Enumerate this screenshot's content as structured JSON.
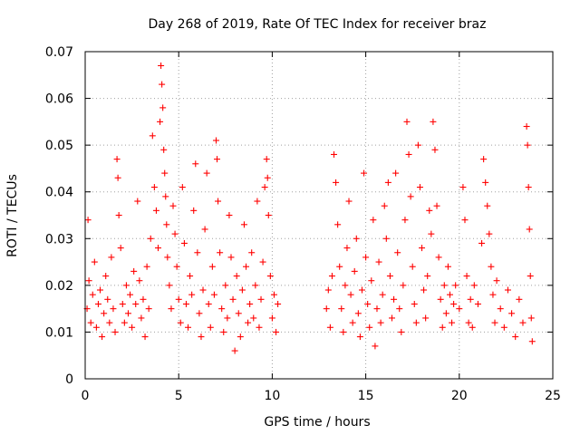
{
  "chart_data": {
    "type": "scatter",
    "title": "Day 268 of 2019, Rate Of TEC Index for receiver braz",
    "xlabel": "GPS time / hours",
    "ylabel": "ROTI / TECUs",
    "xlim": [
      0,
      25
    ],
    "ylim": [
      0,
      0.07
    ],
    "xticks": [
      0,
      5,
      10,
      15,
      20,
      25
    ],
    "xtick_labels": [
      "0",
      "5",
      "10",
      "15",
      "20",
      "25"
    ],
    "yticks": [
      0,
      0.01,
      0.02,
      0.03,
      0.04,
      0.05,
      0.06,
      0.07
    ],
    "ytick_labels": [
      "0",
      "0.01",
      "0.02",
      "0.03",
      "0.04",
      "0.05",
      "0.06",
      "0.07"
    ],
    "grid": true,
    "marker": "plus",
    "color": "#ff0000",
    "data_gap_hours": [
      10.4,
      12.8
    ],
    "points": [
      [
        0.1,
        0.015
      ],
      [
        0.15,
        0.034
      ],
      [
        0.2,
        0.021
      ],
      [
        0.3,
        0.012
      ],
      [
        0.4,
        0.018
      ],
      [
        0.5,
        0.025
      ],
      [
        0.6,
        0.011
      ],
      [
        0.7,
        0.016
      ],
      [
        0.8,
        0.019
      ],
      [
        0.9,
        0.009
      ],
      [
        1.0,
        0.014
      ],
      [
        1.1,
        0.022
      ],
      [
        1.2,
        0.017
      ],
      [
        1.3,
        0.012
      ],
      [
        1.4,
        0.026
      ],
      [
        1.5,
        0.015
      ],
      [
        1.6,
        0.01
      ],
      [
        1.7,
        0.047
      ],
      [
        1.75,
        0.043
      ],
      [
        1.8,
        0.035
      ],
      [
        1.9,
        0.028
      ],
      [
        2.0,
        0.016
      ],
      [
        2.1,
        0.012
      ],
      [
        2.2,
        0.02
      ],
      [
        2.3,
        0.014
      ],
      [
        2.4,
        0.018
      ],
      [
        2.5,
        0.011
      ],
      [
        2.6,
        0.023
      ],
      [
        2.7,
        0.016
      ],
      [
        2.8,
        0.038
      ],
      [
        2.9,
        0.021
      ],
      [
        3.0,
        0.013
      ],
      [
        3.1,
        0.017
      ],
      [
        3.2,
        0.009
      ],
      [
        3.3,
        0.024
      ],
      [
        3.4,
        0.015
      ],
      [
        3.5,
        0.03
      ],
      [
        3.6,
        0.052
      ],
      [
        3.7,
        0.041
      ],
      [
        3.8,
        0.036
      ],
      [
        3.9,
        0.028
      ],
      [
        4.0,
        0.055
      ],
      [
        4.05,
        0.067
      ],
      [
        4.1,
        0.063
      ],
      [
        4.15,
        0.058
      ],
      [
        4.2,
        0.049
      ],
      [
        4.25,
        0.044
      ],
      [
        4.3,
        0.039
      ],
      [
        4.35,
        0.033
      ],
      [
        4.4,
        0.026
      ],
      [
        4.5,
        0.02
      ],
      [
        4.6,
        0.015
      ],
      [
        4.7,
        0.037
      ],
      [
        4.8,
        0.031
      ],
      [
        4.9,
        0.024
      ],
      [
        5.0,
        0.017
      ],
      [
        5.1,
        0.012
      ],
      [
        5.2,
        0.041
      ],
      [
        5.3,
        0.029
      ],
      [
        5.4,
        0.016
      ],
      [
        5.5,
        0.011
      ],
      [
        5.6,
        0.022
      ],
      [
        5.7,
        0.018
      ],
      [
        5.8,
        0.036
      ],
      [
        5.9,
        0.046
      ],
      [
        6.0,
        0.027
      ],
      [
        6.1,
        0.014
      ],
      [
        6.2,
        0.009
      ],
      [
        6.3,
        0.019
      ],
      [
        6.4,
        0.032
      ],
      [
        6.5,
        0.044
      ],
      [
        6.6,
        0.016
      ],
      [
        6.7,
        0.011
      ],
      [
        6.8,
        0.024
      ],
      [
        6.9,
        0.018
      ],
      [
        7.0,
        0.051
      ],
      [
        7.05,
        0.047
      ],
      [
        7.1,
        0.038
      ],
      [
        7.2,
        0.027
      ],
      [
        7.3,
        0.015
      ],
      [
        7.4,
        0.01
      ],
      [
        7.5,
        0.02
      ],
      [
        7.6,
        0.013
      ],
      [
        7.7,
        0.035
      ],
      [
        7.8,
        0.026
      ],
      [
        7.9,
        0.017
      ],
      [
        8.0,
        0.006
      ],
      [
        8.1,
        0.022
      ],
      [
        8.2,
        0.014
      ],
      [
        8.3,
        0.009
      ],
      [
        8.4,
        0.019
      ],
      [
        8.5,
        0.033
      ],
      [
        8.6,
        0.024
      ],
      [
        8.7,
        0.012
      ],
      [
        8.8,
        0.016
      ],
      [
        8.9,
        0.027
      ],
      [
        9.0,
        0.013
      ],
      [
        9.1,
        0.02
      ],
      [
        9.2,
        0.038
      ],
      [
        9.3,
        0.011
      ],
      [
        9.4,
        0.017
      ],
      [
        9.5,
        0.025
      ],
      [
        9.6,
        0.041
      ],
      [
        9.7,
        0.047
      ],
      [
        9.75,
        0.043
      ],
      [
        9.8,
        0.035
      ],
      [
        9.9,
        0.022
      ],
      [
        10.0,
        0.013
      ],
      [
        10.1,
        0.018
      ],
      [
        10.2,
        0.01
      ],
      [
        10.3,
        0.016
      ],
      [
        12.9,
        0.015
      ],
      [
        13.0,
        0.019
      ],
      [
        13.1,
        0.011
      ],
      [
        13.2,
        0.022
      ],
      [
        13.3,
        0.048
      ],
      [
        13.4,
        0.042
      ],
      [
        13.5,
        0.033
      ],
      [
        13.6,
        0.024
      ],
      [
        13.7,
        0.015
      ],
      [
        13.8,
        0.01
      ],
      [
        13.9,
        0.02
      ],
      [
        14.0,
        0.028
      ],
      [
        14.1,
        0.038
      ],
      [
        14.2,
        0.018
      ],
      [
        14.3,
        0.012
      ],
      [
        14.4,
        0.023
      ],
      [
        14.5,
        0.03
      ],
      [
        14.6,
        0.014
      ],
      [
        14.7,
        0.009
      ],
      [
        14.8,
        0.019
      ],
      [
        14.9,
        0.044
      ],
      [
        15.0,
        0.026
      ],
      [
        15.1,
        0.016
      ],
      [
        15.2,
        0.011
      ],
      [
        15.3,
        0.021
      ],
      [
        15.4,
        0.034
      ],
      [
        15.5,
        0.007
      ],
      [
        15.6,
        0.015
      ],
      [
        15.7,
        0.025
      ],
      [
        15.8,
        0.012
      ],
      [
        15.9,
        0.018
      ],
      [
        16.0,
        0.037
      ],
      [
        16.1,
        0.03
      ],
      [
        16.2,
        0.042
      ],
      [
        16.3,
        0.022
      ],
      [
        16.4,
        0.013
      ],
      [
        16.5,
        0.017
      ],
      [
        16.6,
        0.044
      ],
      [
        16.7,
        0.027
      ],
      [
        16.8,
        0.015
      ],
      [
        16.9,
        0.01
      ],
      [
        17.0,
        0.02
      ],
      [
        17.1,
        0.034
      ],
      [
        17.2,
        0.055
      ],
      [
        17.3,
        0.048
      ],
      [
        17.4,
        0.039
      ],
      [
        17.5,
        0.024
      ],
      [
        17.6,
        0.016
      ],
      [
        17.7,
        0.012
      ],
      [
        17.8,
        0.05
      ],
      [
        17.9,
        0.041
      ],
      [
        18.0,
        0.028
      ],
      [
        18.1,
        0.019
      ],
      [
        18.2,
        0.013
      ],
      [
        18.3,
        0.022
      ],
      [
        18.4,
        0.036
      ],
      [
        18.5,
        0.031
      ],
      [
        18.6,
        0.055
      ],
      [
        18.7,
        0.049
      ],
      [
        18.8,
        0.037
      ],
      [
        18.9,
        0.026
      ],
      [
        19.0,
        0.017
      ],
      [
        19.1,
        0.011
      ],
      [
        19.2,
        0.02
      ],
      [
        19.3,
        0.014
      ],
      [
        19.4,
        0.024
      ],
      [
        19.5,
        0.018
      ],
      [
        19.6,
        0.012
      ],
      [
        19.7,
        0.016
      ],
      [
        19.8,
        0.02
      ],
      [
        20.0,
        0.015
      ],
      [
        20.2,
        0.041
      ],
      [
        20.3,
        0.034
      ],
      [
        20.4,
        0.022
      ],
      [
        20.5,
        0.012
      ],
      [
        20.6,
        0.017
      ],
      [
        20.7,
        0.011
      ],
      [
        20.8,
        0.02
      ],
      [
        21.0,
        0.016
      ],
      [
        21.2,
        0.029
      ],
      [
        21.3,
        0.047
      ],
      [
        21.4,
        0.042
      ],
      [
        21.5,
        0.037
      ],
      [
        21.6,
        0.031
      ],
      [
        21.7,
        0.024
      ],
      [
        21.8,
        0.018
      ],
      [
        21.9,
        0.012
      ],
      [
        22.0,
        0.021
      ],
      [
        22.2,
        0.015
      ],
      [
        22.4,
        0.011
      ],
      [
        22.6,
        0.019
      ],
      [
        22.8,
        0.014
      ],
      [
        23.0,
        0.009
      ],
      [
        23.2,
        0.017
      ],
      [
        23.4,
        0.012
      ],
      [
        23.6,
        0.054
      ],
      [
        23.65,
        0.05
      ],
      [
        23.7,
        0.041
      ],
      [
        23.75,
        0.032
      ],
      [
        23.8,
        0.022
      ],
      [
        23.85,
        0.013
      ],
      [
        23.9,
        0.008
      ]
    ]
  }
}
